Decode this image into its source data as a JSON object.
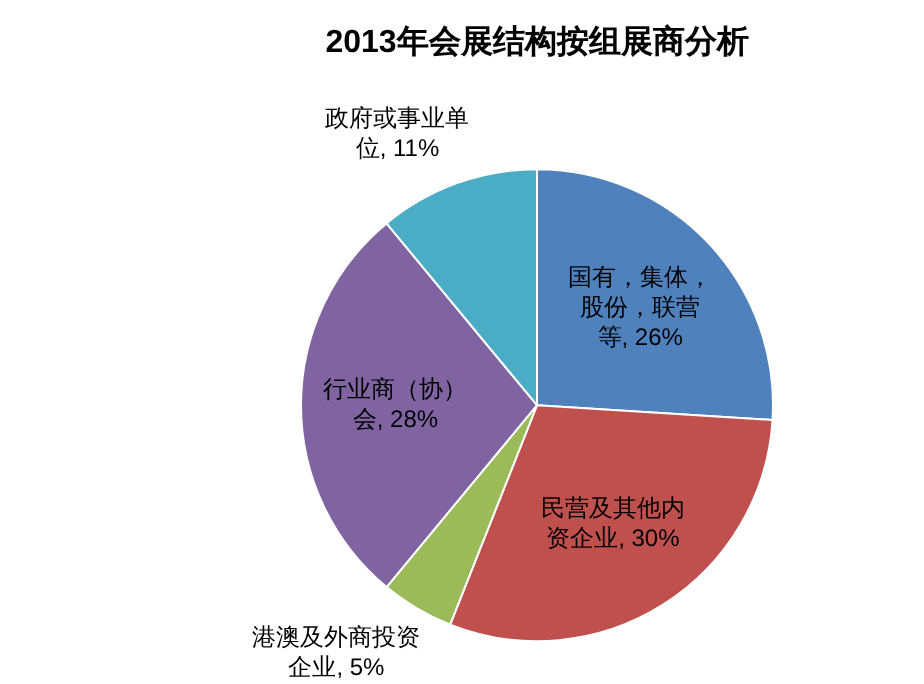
{
  "chart_data": {
    "type": "pie",
    "title": "2013年会展结构按组展商分析",
    "categories": [
      "国有，集体，股份，联营等",
      "民营及其他内资企业",
      "港澳及外商投资企业",
      "行业商（协）会",
      "政府或事业单位"
    ],
    "values": [
      26,
      30,
      5,
      28,
      11
    ],
    "value_labels": [
      "26%",
      "30%",
      "5%",
      "28%",
      "11%"
    ],
    "colors": [
      "#4f81bd",
      "#c0504d",
      "#9bbb59",
      "#8064a2",
      "#4bacc6"
    ],
    "legend": false
  }
}
